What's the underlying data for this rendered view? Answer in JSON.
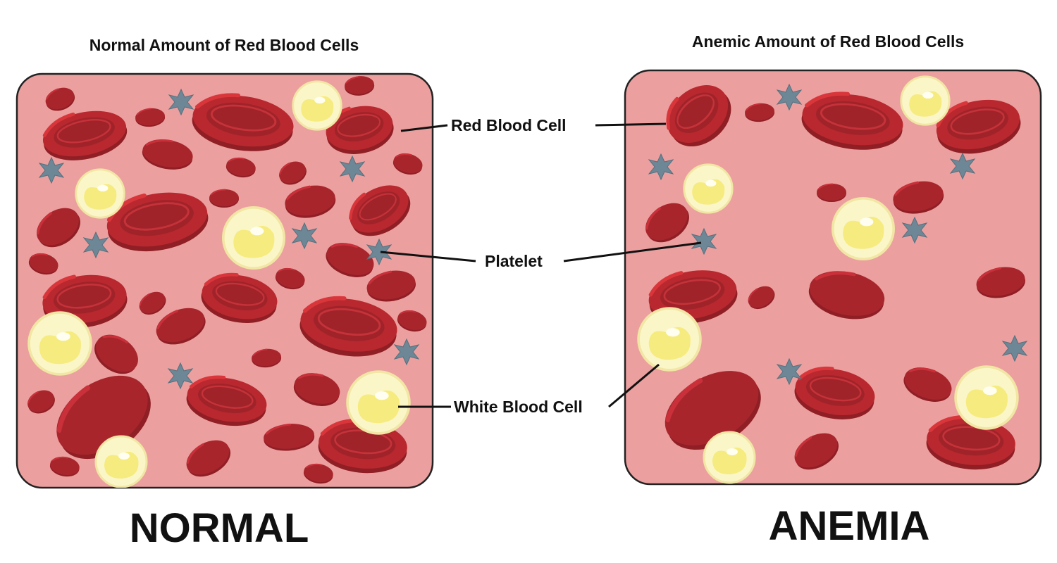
{
  "panels": {
    "normal": {
      "title": "Normal Amount of Red Blood Cells",
      "caption": "NORMAL"
    },
    "anemia": {
      "title": "Anemic Amount of Red Blood Cells",
      "caption": "ANEMIA"
    }
  },
  "labels": {
    "red_blood_cell": "Red Blood Cell",
    "platelet": "Platelet",
    "white_blood_cell": "White Blood Cell"
  },
  "colors": {
    "plasma": "#EBA09F",
    "panel_border": "#222222",
    "rbc_dark": "#A0232A",
    "rbc_mid": "#BF2A30",
    "rbc_light": "#D9363B",
    "wbc_outer": "#FBF6C8",
    "wbc_inner": "#F6EB7E",
    "platelet": "#6E8796"
  }
}
